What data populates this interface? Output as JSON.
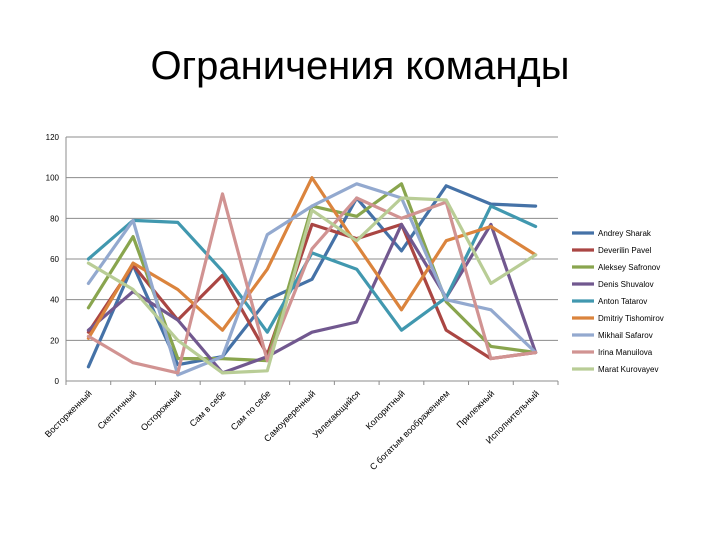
{
  "slide": {
    "title": "Ограничения команды"
  },
  "chart_data": {
    "type": "line",
    "title": "",
    "xlabel": "",
    "ylabel": "",
    "ylim": [
      0,
      120
    ],
    "yticks": [
      0,
      20,
      40,
      60,
      80,
      100,
      120
    ],
    "grid": true,
    "legend_position": "right",
    "categories": [
      "Восторженный",
      "Скептичный",
      "Осторожный",
      "Сам в себе",
      "Сам по себе",
      "Самоуверенный",
      "Увлекающийся",
      "Колоритный",
      "С богатым воображением",
      "Прилежный",
      "Исполнительный"
    ],
    "series": [
      {
        "name": "Andrey Sharak",
        "color": "#4572a7",
        "values": [
          7,
          57,
          8,
          12,
          40,
          50,
          90,
          64,
          96,
          87,
          86
        ]
      },
      {
        "name": "Deverilin Pavel",
        "color": "#aa4643",
        "values": [
          24,
          57,
          30,
          52,
          13,
          77,
          70,
          77,
          25,
          11,
          14
        ]
      },
      {
        "name": "Aleksey Safronov",
        "color": "#89a54e",
        "values": [
          36,
          71,
          11,
          11,
          10,
          86,
          81,
          97,
          39,
          17,
          14
        ]
      },
      {
        "name": "Denis Shuvalov",
        "color": "#71588f",
        "values": [
          25,
          44,
          30,
          4,
          12,
          24,
          29,
          77,
          41,
          77,
          14
        ]
      },
      {
        "name": "Anton Tatarov",
        "color": "#4198af",
        "values": [
          60,
          79,
          78,
          54,
          24,
          63,
          55,
          25,
          41,
          86,
          76
        ]
      },
      {
        "name": "Dmitriy Tishomirov",
        "color": "#db843d",
        "values": [
          21,
          58,
          45,
          25,
          55,
          100,
          67,
          35,
          69,
          76,
          62
        ]
      },
      {
        "name": "Mikhail Safarov",
        "color": "#93a9cf",
        "values": [
          48,
          79,
          3,
          12,
          72,
          86,
          97,
          90,
          40,
          35,
          14
        ]
      },
      {
        "name": "Irina Manuilova",
        "color": "#d19392",
        "values": [
          22,
          9,
          4,
          92,
          10,
          65,
          90,
          80,
          88,
          11,
          14
        ]
      },
      {
        "name": "Marat Kurovayev",
        "color": "#b9cd96",
        "values": [
          58,
          45,
          20,
          4,
          5,
          84,
          69,
          90,
          89,
          48,
          62
        ]
      }
    ]
  }
}
